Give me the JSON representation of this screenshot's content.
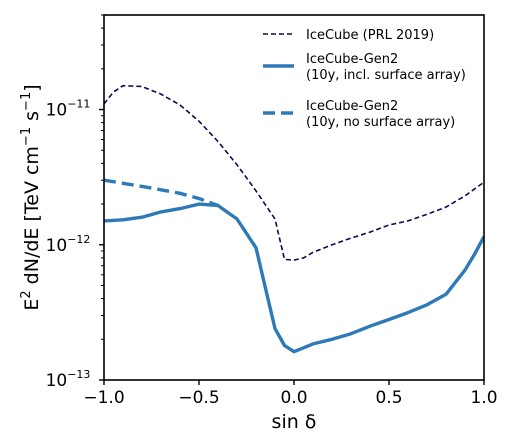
{
  "chart_data": {
    "type": "line",
    "xlabel": "sin δ",
    "ylabel": "E",
    "ylabel_parts": {
      "sup1": "2",
      "main": " dN/dE [TeV cm",
      "sup2": "−1",
      "mid": " s",
      "sup3": "−1",
      "end": "]"
    },
    "xlim": [
      -1.0,
      1.0
    ],
    "ylim": [
      1e-13,
      5e-11
    ],
    "yscale": "log",
    "grid": false,
    "legend_position": "top-right",
    "xticks": [
      {
        "value": -1.0,
        "label": "−1.0"
      },
      {
        "value": -0.5,
        "label": "−0.5"
      },
      {
        "value": 0.0,
        "label": "0.0"
      },
      {
        "value": 0.5,
        "label": "0.5"
      },
      {
        "value": 1.0,
        "label": "1.0"
      }
    ],
    "yticks": [
      {
        "value": 1e-13,
        "base": "10",
        "exp": "−13"
      },
      {
        "value": 1e-12,
        "base": "10",
        "exp": "−12"
      },
      {
        "value": 1e-11,
        "base": "10",
        "exp": "−11"
      }
    ],
    "series": [
      {
        "name": "IceCube (PRL 2019)",
        "label_lines": [
          "IceCube (PRL 2019)"
        ],
        "color": "#0b0b4f",
        "style": "dashed-thin",
        "x": [
          -1.0,
          -0.95,
          -0.9,
          -0.8,
          -0.7,
          -0.6,
          -0.5,
          -0.4,
          -0.3,
          -0.2,
          -0.1,
          -0.05,
          0.0,
          0.05,
          0.1,
          0.2,
          0.3,
          0.4,
          0.5,
          0.6,
          0.7,
          0.8,
          0.9,
          1.0
        ],
        "y": [
          1.1e-11,
          1.35e-11,
          1.5e-11,
          1.48e-11,
          1.3e-11,
          1.08e-11,
          8.2e-12,
          5.8e-12,
          3.9e-12,
          2.5e-12,
          1.55e-12,
          7.8e-13,
          7.7e-13,
          8e-13,
          8.8e-13,
          1e-12,
          1.12e-12,
          1.24e-12,
          1.4e-12,
          1.5e-12,
          1.68e-12,
          1.9e-12,
          2.3e-12,
          2.9e-12
        ]
      },
      {
        "name": "IceCube-Gen2 (10y, incl. surface array)",
        "label_lines": [
          "IceCube-Gen2",
          "(10y, incl. surface array)"
        ],
        "color": "#2e7ab8",
        "style": "solid-thick",
        "x": [
          -1.0,
          -0.9,
          -0.8,
          -0.7,
          -0.6,
          -0.5,
          -0.4,
          -0.3,
          -0.2,
          -0.1,
          -0.05,
          0.0,
          0.1,
          0.2,
          0.3,
          0.4,
          0.5,
          0.6,
          0.7,
          0.8,
          0.9,
          0.95,
          1.0
        ],
        "y": [
          1.5e-12,
          1.53e-12,
          1.6e-12,
          1.75e-12,
          1.85e-12,
          2e-12,
          1.95e-12,
          1.55e-12,
          9.5e-13,
          2.4e-13,
          1.8e-13,
          1.62e-13,
          1.85e-13,
          2e-13,
          2.2e-13,
          2.5e-13,
          2.8e-13,
          3.15e-13,
          3.6e-13,
          4.3e-13,
          6.5e-13,
          8.5e-13,
          1.15e-12
        ]
      },
      {
        "name": "IceCube-Gen2 (10y, no surface array)",
        "label_lines": [
          "IceCube-Gen2",
          "(10y, no surface array)"
        ],
        "color": "#2e7ab8",
        "style": "dashed-thick",
        "x": [
          -1.0,
          -0.9,
          -0.8,
          -0.7,
          -0.6,
          -0.5,
          -0.4
        ],
        "y": [
          3e-12,
          2.85e-12,
          2.7e-12,
          2.55e-12,
          2.4e-12,
          2.2e-12,
          1.95e-12
        ]
      }
    ]
  }
}
